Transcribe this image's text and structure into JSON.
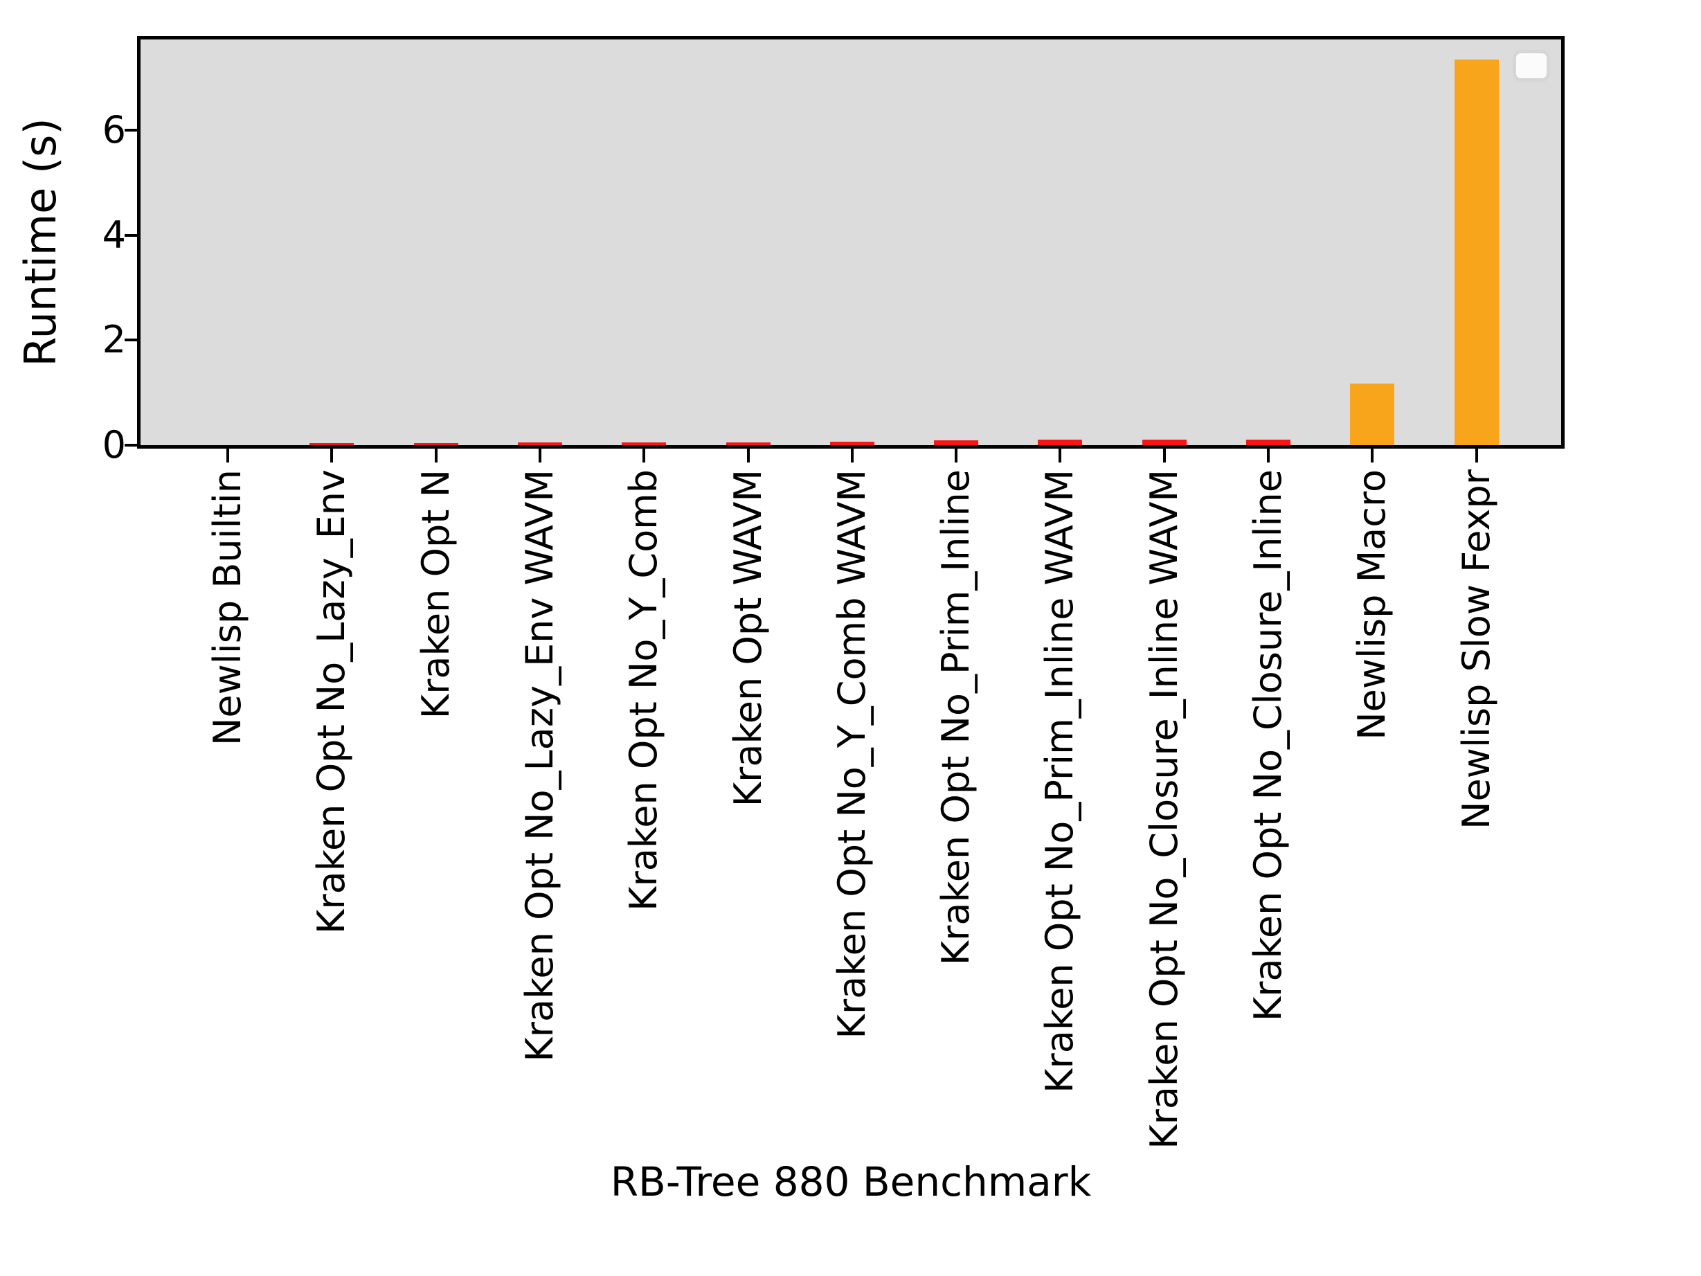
{
  "figure": {
    "background": "#ffffff",
    "plot_background": "#dcdcdc",
    "spine_color": "#000000"
  },
  "chart_data": {
    "type": "bar",
    "title": "",
    "xlabel": "RB-Tree 880 Benchmark",
    "ylabel": "Runtime (s)",
    "categories": [
      "Newlisp Builtin",
      "Kraken Opt No_Lazy_Env",
      "Kraken Opt N",
      "Kraken Opt No_Lazy_Env WAVM",
      "Kraken Opt No_Y_Comb",
      "Kraken Opt WAVM",
      "Kraken Opt No_Y_Comb WAVM",
      "Kraken Opt No_Prim_Inline",
      "Kraken Opt No_Prim_Inline WAVM",
      "Kraken Opt No_Closure_Inline WAVM",
      "Kraken Opt No_Closure_Inline",
      "Newlisp Macro",
      "Newlisp Slow Fexpr"
    ],
    "values": [
      0.004,
      0.04,
      0.04,
      0.05,
      0.05,
      0.05,
      0.06,
      0.09,
      0.1,
      0.1,
      0.1,
      1.18,
      7.35
    ],
    "bar_colors": [
      "#f91515",
      "#f91515",
      "#f91515",
      "#f91515",
      "#f91515",
      "#f91515",
      "#f91515",
      "#f91515",
      "#f91515",
      "#f91515",
      "#f91515",
      "#f9a51c",
      "#f9a51c"
    ],
    "color_red": "#f91515",
    "color_orange": "#f9a51c",
    "ylim": [
      0,
      7.75
    ],
    "yticks": [
      "0",
      "2",
      "4",
      "6"
    ],
    "ytick_values": [
      0,
      2,
      4,
      6
    ],
    "grid": false,
    "legend": {
      "visible": true,
      "entries": []
    }
  }
}
